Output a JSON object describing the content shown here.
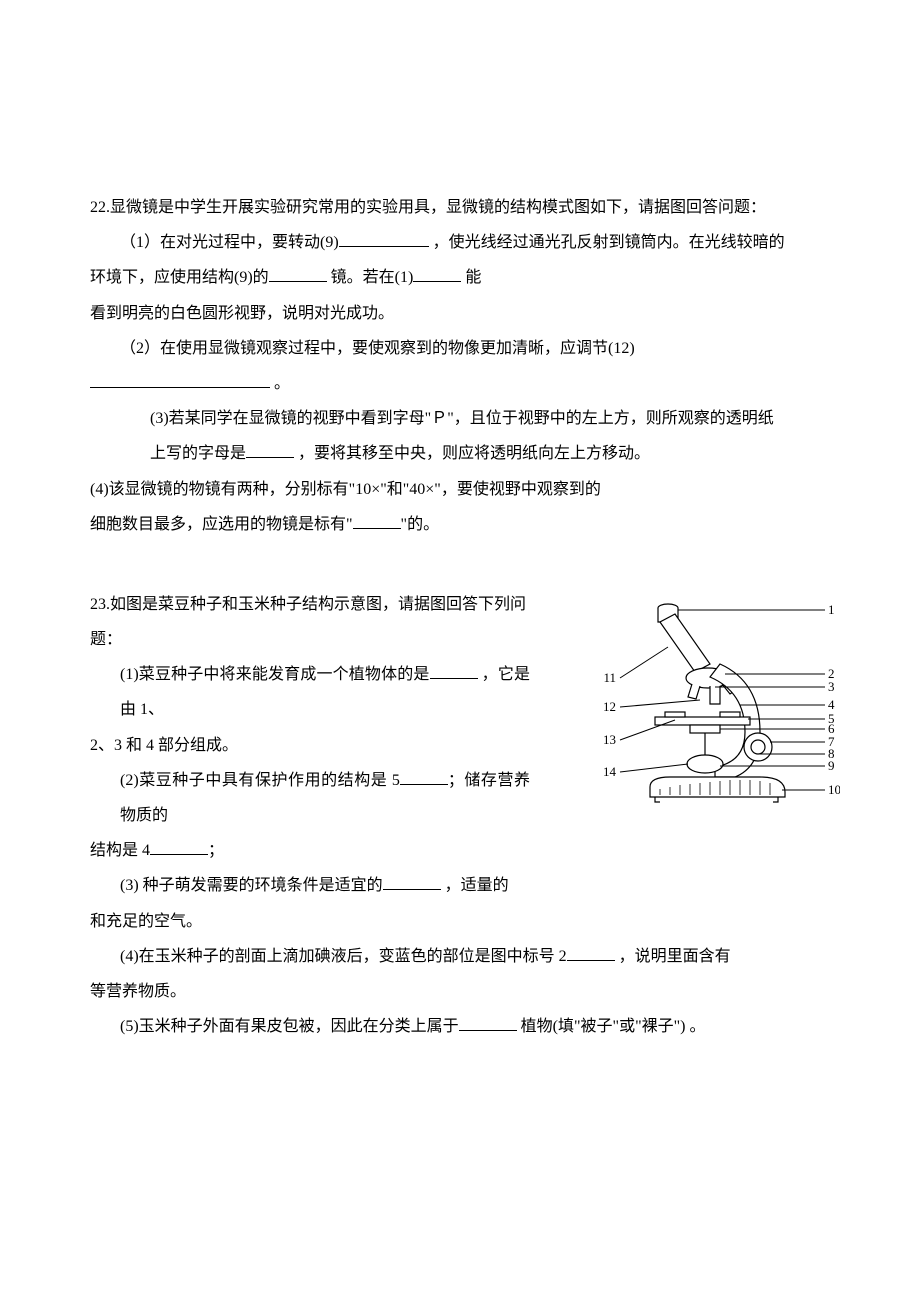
{
  "q22": {
    "intro": "22.显微镜是中学生开展实验研究常用的实验用具，显微镜的结构模式图如下，请据图回答问题：",
    "p1a": "（1）在对光过程中，要转动(9)",
    "p1b": " ，使光线经过通光孔反射到镜筒内。在光线较暗的",
    "p1c": "环境下，应使用结构(9)的",
    "p1d": " 镜。若在(1)",
    "p1e": " 能",
    "p1f": "看到明亮的白色圆形视野，说明对光成功。",
    "p2a": "（2）在使用显微镜观察过程中，要使观察到的物像更加清晰，应调节(12)",
    "p2b": " 。",
    "p3a": "(3)若某同学在显微镜的视野中看到字母\"Ｐ\"，且位于视野中的左上方，则所观察的透明纸",
    "p3b": "上写的字母是",
    "p3c": " ，要将其移至中央，则应将透明纸向左上方移动。",
    "p4a": "(4)该显微镜的物镜有两种，分别标有\"10×\"和\"40×\"，要使视野中观察到的",
    "p4b": "细胞数目最多，应选用的物镜是标有\"",
    "p4c": "\"的。"
  },
  "q23": {
    "intro": "23.如图是菜豆种子和玉米种子结构示意图，请据图回答下列问",
    "introB": "题：",
    "p1a": "(1)菜豆种子中将来能发育成一个植物体的是",
    "p1b": " ，它是由 1、",
    "p1c": "2、3 和 4 部分组成。",
    "p2a": "(2)菜豆种子中具有保护作用的结构是 5",
    "p2b": "；储存营养物质的",
    "p2c": "结构是 4",
    "p2d": "；",
    "p3a": "(3) 种子萌发需要的环境条件是适宜的",
    "p3b": " ，适量的",
    "p3c": "和充足的空气。",
    "p4a": "(4)在玉米种子的剖面上滴加碘液后，变蓝色的部位是图中标号 2",
    "p4b": " ，说明里面含有",
    "p4c": "等营养物质。",
    "p5a": "(5)玉米种子外面有果皮包被，因此在分类上属于",
    "p5b": " 植物(填\"被子\"或\"裸子\")  。"
  },
  "microscope": {
    "labels_left": [
      "11",
      "12",
      "13",
      "14"
    ],
    "labels_right": [
      "1",
      "2",
      "3",
      "4",
      "5",
      "6",
      "7",
      "8",
      "9",
      "10"
    ],
    "stroke_color": "#000000",
    "fill_color": "#ffffff",
    "label_fontsize": 13,
    "line_width": 1.2
  }
}
